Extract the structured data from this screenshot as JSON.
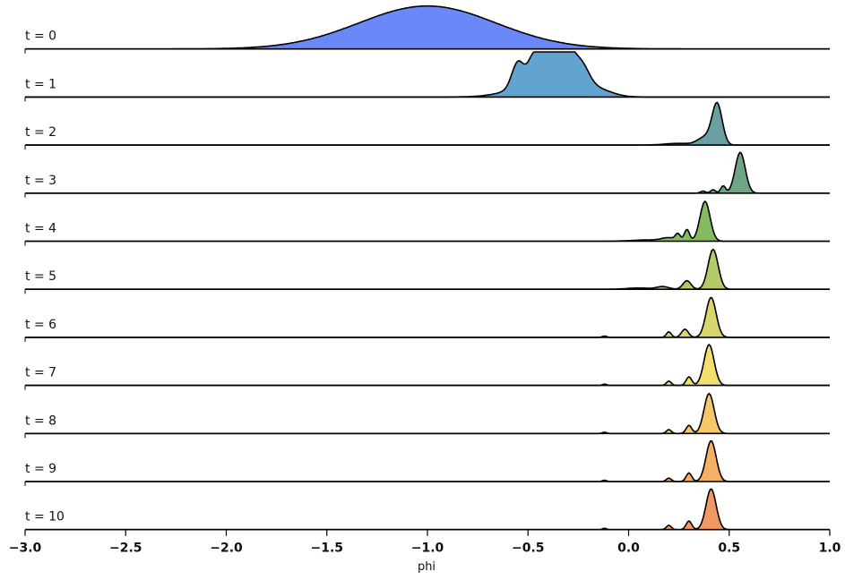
{
  "chart_data": {
    "type": "area",
    "xlabel": "phi",
    "xlim": [
      -3.0,
      1.0
    ],
    "xticks": [
      -3.0,
      -2.5,
      -2.0,
      -1.5,
      -1.0,
      -0.5,
      0.0,
      0.5,
      1.0
    ],
    "xtick_labels": [
      "−3.0",
      "−2.5",
      "−2.0",
      "−1.5",
      "−1.0",
      "−0.5",
      "0.0",
      "0.5",
      "1.0"
    ],
    "grid": false,
    "series": [
      {
        "name": "t = 0",
        "color": "#6a88f7",
        "peaks": [
          [
            -1.0,
            0.34,
            1.0
          ]
        ]
      },
      {
        "name": "t = 1",
        "color": "#62a3d0",
        "peaks": [
          [
            -0.55,
            0.03,
            0.6
          ],
          [
            -0.48,
            0.025,
            0.45
          ],
          [
            -0.43,
            0.03,
            0.7
          ],
          [
            -0.37,
            0.03,
            0.72
          ],
          [
            -0.31,
            0.03,
            0.7
          ],
          [
            -0.24,
            0.04,
            0.5
          ],
          [
            -0.42,
            0.14,
            0.35
          ],
          [
            -0.3,
            0.07,
            0.2
          ],
          [
            -0.15,
            0.07,
            0.14
          ]
        ]
      },
      {
        "name": "t = 2",
        "color": "#6a9fa3",
        "peaks": [
          [
            0.44,
            0.025,
            0.95
          ],
          [
            0.38,
            0.035,
            0.18
          ],
          [
            0.25,
            0.07,
            0.04
          ]
        ]
      },
      {
        "name": "t = 3",
        "color": "#6fa583",
        "peaks": [
          [
            0.555,
            0.025,
            0.95
          ],
          [
            0.47,
            0.012,
            0.17
          ],
          [
            0.42,
            0.012,
            0.08
          ],
          [
            0.37,
            0.012,
            0.05
          ]
        ]
      },
      {
        "name": "t = 4",
        "color": "#86ba5f",
        "peaks": [
          [
            0.38,
            0.025,
            0.93
          ],
          [
            0.29,
            0.013,
            0.27
          ],
          [
            0.245,
            0.012,
            0.15
          ],
          [
            0.2,
            0.035,
            0.07
          ],
          [
            0.1,
            0.08,
            0.03
          ]
        ]
      },
      {
        "name": "t = 5",
        "color": "#b2cb66",
        "peaks": [
          [
            0.42,
            0.025,
            0.93
          ],
          [
            0.29,
            0.02,
            0.2
          ],
          [
            0.17,
            0.03,
            0.06
          ],
          [
            0.05,
            0.06,
            0.03
          ]
        ]
      },
      {
        "name": "t = 6",
        "color": "#d8d56c",
        "peaks": [
          [
            0.41,
            0.025,
            0.93
          ],
          [
            0.28,
            0.017,
            0.19
          ],
          [
            0.2,
            0.012,
            0.13
          ],
          [
            -0.12,
            0.01,
            0.03
          ]
        ]
      },
      {
        "name": "t = 7",
        "color": "#f3de6e",
        "peaks": [
          [
            0.4,
            0.025,
            0.95
          ],
          [
            0.3,
            0.014,
            0.2
          ],
          [
            0.2,
            0.012,
            0.1
          ],
          [
            -0.12,
            0.01,
            0.03
          ]
        ]
      },
      {
        "name": "t = 8",
        "color": "#f6c86a",
        "peaks": [
          [
            0.4,
            0.025,
            0.93
          ],
          [
            0.3,
            0.014,
            0.19
          ],
          [
            0.2,
            0.012,
            0.09
          ],
          [
            -0.12,
            0.01,
            0.03
          ]
        ]
      },
      {
        "name": "t = 9",
        "color": "#f5b066",
        "peaks": [
          [
            0.41,
            0.025,
            0.95
          ],
          [
            0.3,
            0.014,
            0.2
          ],
          [
            0.2,
            0.012,
            0.08
          ],
          [
            -0.12,
            0.01,
            0.03
          ]
        ]
      },
      {
        "name": "t = 10",
        "color": "#f39863",
        "peaks": [
          [
            0.41,
            0.025,
            0.95
          ],
          [
            0.3,
            0.014,
            0.2
          ],
          [
            0.2,
            0.012,
            0.1
          ],
          [
            -0.12,
            0.01,
            0.03
          ]
        ]
      }
    ]
  }
}
